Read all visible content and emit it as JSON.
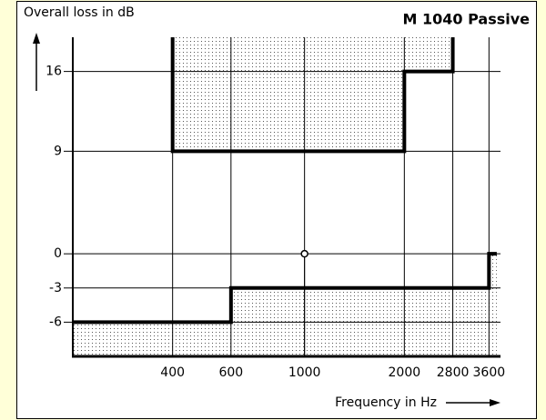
{
  "chart_data": {
    "type": "step",
    "title": "M 1040 Passive",
    "ylabel": "Overall loss in dB",
    "xlabel": "Frequency in Hz",
    "xscale": "log",
    "xlim": [
      200,
      3900
    ],
    "xticks": [
      400,
      600,
      1000,
      2000,
      2800,
      3600
    ],
    "ylim": [
      -9,
      19
    ],
    "yticks": [
      16,
      9,
      0,
      -3,
      -6
    ],
    "grid": true,
    "series": [
      {
        "fill": "above",
        "color": "#000000",
        "x": [
          400,
          400,
          2000,
          2000,
          2800,
          2800
        ],
        "values": [
          19,
          9,
          9,
          16,
          16,
          19
        ]
      },
      {
        "fill": "below",
        "color": "#000000",
        "x": [
          200,
          600,
          600,
          3600,
          3600,
          3800
        ],
        "values": [
          -6,
          -6,
          -3,
          -3,
          0,
          0
        ]
      }
    ],
    "marker": {
      "x": 1000,
      "y": 0
    }
  }
}
